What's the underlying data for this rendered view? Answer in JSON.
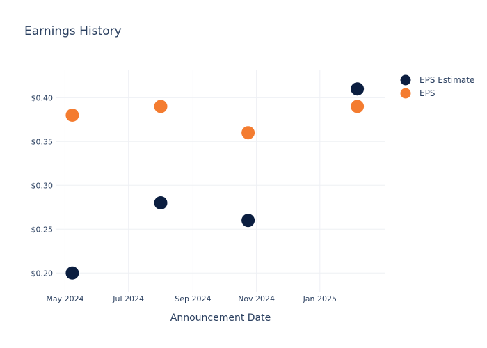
{
  "chart_data": {
    "type": "scatter",
    "title": "Earnings History",
    "xlabel": "Announcement Date",
    "ylabel": "",
    "x_ticks": [
      {
        "date": "2024-05-01",
        "label": "May 2024"
      },
      {
        "date": "2024-07-01",
        "label": "Jul 2024"
      },
      {
        "date": "2024-09-01",
        "label": "Sep 2024"
      },
      {
        "date": "2024-11-01",
        "label": "Nov 2024"
      },
      {
        "date": "2025-01-01",
        "label": "Jan 2025"
      }
    ],
    "y_ticks": [
      {
        "value": 0.2,
        "label": "$0.20"
      },
      {
        "value": 0.25,
        "label": "$0.25"
      },
      {
        "value": 0.3,
        "label": "$0.30"
      },
      {
        "value": 0.35,
        "label": "$0.35"
      },
      {
        "value": 0.4,
        "label": "$0.40"
      }
    ],
    "xlim": [
      "2024-04-22",
      "2025-03-05"
    ],
    "ylim": [
      0.178,
      0.432
    ],
    "grid": true,
    "legend_position": "top-right",
    "series": [
      {
        "name": "EPS Estimate",
        "color": "#0b1e40",
        "points": [
          {
            "x": "2024-05-08",
            "y": 0.2
          },
          {
            "x": "2024-08-01",
            "y": 0.28
          },
          {
            "x": "2024-10-24",
            "y": 0.26
          },
          {
            "x": "2025-02-06",
            "y": 0.41
          }
        ]
      },
      {
        "name": "EPS",
        "color": "#f47c30",
        "points": [
          {
            "x": "2024-05-08",
            "y": 0.38
          },
          {
            "x": "2024-08-01",
            "y": 0.39
          },
          {
            "x": "2024-10-24",
            "y": 0.36
          },
          {
            "x": "2025-02-06",
            "y": 0.39
          }
        ]
      }
    ]
  }
}
